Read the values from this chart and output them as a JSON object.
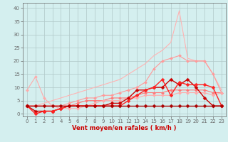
{
  "x": [
    0,
    1,
    2,
    3,
    4,
    5,
    6,
    7,
    8,
    9,
    10,
    11,
    12,
    13,
    14,
    15,
    16,
    17,
    18,
    19,
    20,
    21,
    22,
    23
  ],
  "series": [
    {
      "color": "#ffb3b3",
      "linewidth": 0.8,
      "marker": null,
      "markersize": 0,
      "values": [
        3,
        3,
        4,
        5,
        6,
        7,
        8,
        9,
        10,
        11,
        12,
        13,
        15,
        17,
        19,
        22,
        24,
        27,
        39,
        21,
        20,
        20,
        15,
        9
      ]
    },
    {
      "color": "#ff9999",
      "linewidth": 0.8,
      "marker": "D",
      "markersize": 2,
      "values": [
        3,
        3,
        3,
        3,
        3,
        4,
        5,
        6,
        6,
        7,
        7,
        8,
        9,
        10,
        12,
        17,
        20,
        21,
        22,
        20,
        20,
        20,
        15,
        8
      ]
    },
    {
      "color": "#ff7777",
      "linewidth": 0.8,
      "marker": "D",
      "markersize": 2,
      "values": [
        3,
        3,
        3,
        3,
        3,
        3,
        4,
        5,
        5,
        5,
        6,
        6,
        6,
        7,
        8,
        8,
        8,
        9,
        9,
        9,
        9,
        9,
        8,
        8
      ]
    },
    {
      "color": "#ffaaaa",
      "linewidth": 0.8,
      "marker": "D",
      "markersize": 2,
      "values": [
        9,
        14,
        6,
        3,
        2,
        2,
        2,
        3,
        4,
        5,
        5,
        5,
        6,
        6,
        7,
        7,
        7,
        7,
        8,
        8,
        8,
        8,
        7,
        8
      ]
    },
    {
      "color": "#cc0000",
      "linewidth": 1.0,
      "marker": "D",
      "markersize": 2.5,
      "values": [
        3,
        1,
        1,
        1,
        2,
        3,
        3,
        3,
        3,
        3,
        4,
        4,
        6,
        9,
        9,
        10,
        10,
        13,
        11,
        13,
        10,
        6,
        3,
        3
      ]
    },
    {
      "color": "#ff2222",
      "linewidth": 1.0,
      "marker": "D",
      "markersize": 2.5,
      "values": [
        3,
        0,
        1,
        1,
        2,
        3,
        3,
        3,
        3,
        3,
        3,
        3,
        5,
        7,
        9,
        10,
        13,
        7,
        12,
        11,
        11,
        11,
        10,
        3
      ]
    },
    {
      "color": "#aa0000",
      "linewidth": 1.0,
      "marker": "D",
      "markersize": 2.5,
      "values": [
        3,
        3,
        3,
        3,
        3,
        3,
        3,
        3,
        3,
        3,
        3,
        3,
        3,
        3,
        3,
        3,
        3,
        3,
        3,
        3,
        3,
        3,
        3,
        3
      ]
    }
  ],
  "xlim": [
    -0.5,
    23.5
  ],
  "ylim": [
    -1,
    42
  ],
  "yticks": [
    0,
    5,
    10,
    15,
    20,
    25,
    30,
    35,
    40
  ],
  "xticks": [
    0,
    1,
    2,
    3,
    4,
    5,
    6,
    7,
    8,
    9,
    10,
    11,
    12,
    13,
    14,
    15,
    16,
    17,
    18,
    19,
    20,
    21,
    22,
    23
  ],
  "xlabel": "Vent moyen/en rafales ( km/h )",
  "xlabel_color": "#cc0000",
  "xlabel_fontsize": 6,
  "tick_fontsize": 5,
  "background_color": "#d4efef",
  "grid_color": "#b0c8c8",
  "axis_color": "#666666"
}
